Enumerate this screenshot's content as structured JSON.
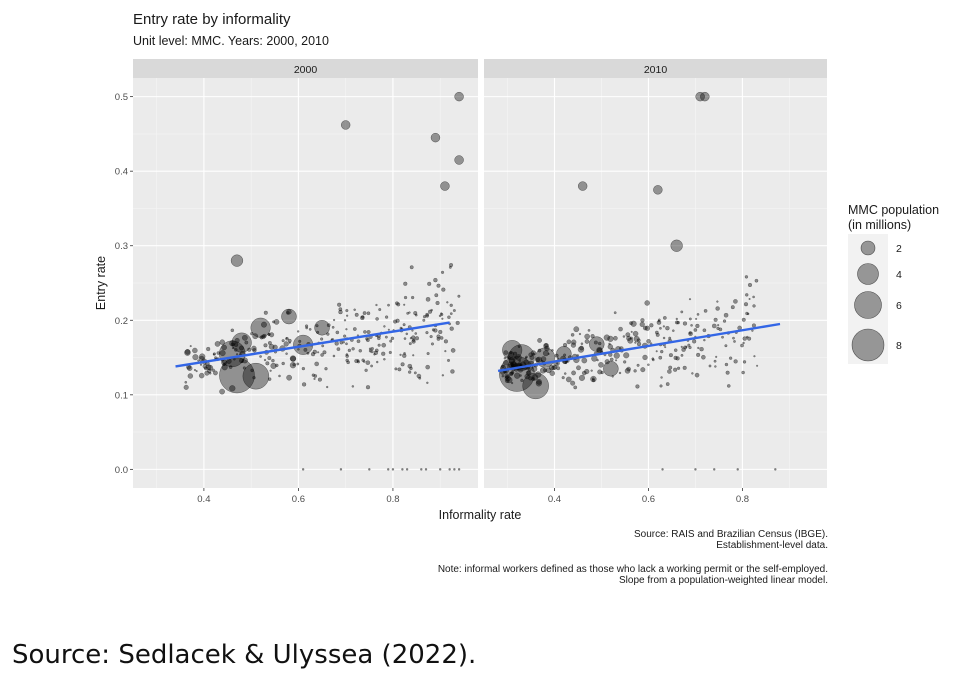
{
  "chart_data": {
    "type": "scatter",
    "title": "Entry rate by informality",
    "subtitle": "Unit level: MMC. Years: 2000, 2010",
    "xlabel": "Informality rate",
    "ylabel": "Entry rate",
    "xlim": [
      0.25,
      0.98
    ],
    "ylim": [
      -0.025,
      0.525
    ],
    "xticks": [
      "0.4",
      "0.6",
      "0.8"
    ],
    "yticks": [
      "0.0",
      "0.1",
      "0.2",
      "0.3",
      "0.4",
      "0.5"
    ],
    "grid": true,
    "facets": [
      "2000",
      "2010"
    ],
    "legend": {
      "title": "MMC population (in millions)",
      "position": "right",
      "sizes": [
        "2",
        "4",
        "6",
        "8"
      ]
    },
    "fit_lines": [
      {
        "facet": "2000",
        "x": [
          0.34,
          0.92
        ],
        "y": [
          0.138,
          0.197
        ],
        "color": "#3366e6"
      },
      {
        "facet": "2010",
        "x": [
          0.28,
          0.88
        ],
        "y": [
          0.132,
          0.195
        ],
        "color": "#3366e6"
      }
    ],
    "highlighted_points": [
      {
        "facet": "2000",
        "x": 0.47,
        "y": 0.126,
        "size": 8
      },
      {
        "facet": "2000",
        "x": 0.51,
        "y": 0.125,
        "size": 4
      },
      {
        "facet": "2000",
        "x": 0.46,
        "y": 0.155,
        "size": 4
      },
      {
        "facet": "2000",
        "x": 0.48,
        "y": 0.17,
        "size": 2
      },
      {
        "facet": "2000",
        "x": 0.52,
        "y": 0.19,
        "size": 2
      },
      {
        "facet": "2000",
        "x": 0.61,
        "y": 0.167,
        "size": 2
      },
      {
        "facet": "2000",
        "x": 0.58,
        "y": 0.205,
        "size": 1
      },
      {
        "facet": "2000",
        "x": 0.65,
        "y": 0.19,
        "size": 1
      },
      {
        "facet": "2000",
        "x": 0.47,
        "y": 0.28,
        "size": 0.5
      },
      {
        "facet": "2000",
        "x": 0.7,
        "y": 0.462,
        "size": 0.2
      },
      {
        "facet": "2000",
        "x": 0.94,
        "y": 0.5,
        "size": 0.2
      },
      {
        "facet": "2000",
        "x": 0.89,
        "y": 0.445,
        "size": 0.2
      },
      {
        "facet": "2000",
        "x": 0.94,
        "y": 0.415,
        "size": 0.2
      },
      {
        "facet": "2000",
        "x": 0.91,
        "y": 0.38,
        "size": 0.2
      },
      {
        "facet": "2010",
        "x": 0.32,
        "y": 0.128,
        "size": 8
      },
      {
        "facet": "2010",
        "x": 0.36,
        "y": 0.112,
        "size": 4
      },
      {
        "facet": "2010",
        "x": 0.33,
        "y": 0.15,
        "size": 4
      },
      {
        "facet": "2010",
        "x": 0.31,
        "y": 0.16,
        "size": 2
      },
      {
        "facet": "2010",
        "x": 0.38,
        "y": 0.15,
        "size": 2
      },
      {
        "facet": "2010",
        "x": 0.42,
        "y": 0.155,
        "size": 1
      },
      {
        "facet": "2010",
        "x": 0.49,
        "y": 0.168,
        "size": 1
      },
      {
        "facet": "2010",
        "x": 0.52,
        "y": 0.135,
        "size": 1
      },
      {
        "facet": "2010",
        "x": 0.46,
        "y": 0.38,
        "size": 0.2
      },
      {
        "facet": "2010",
        "x": 0.62,
        "y": 0.375,
        "size": 0.2
      },
      {
        "facet": "2010",
        "x": 0.71,
        "y": 0.5,
        "size": 0.2
      },
      {
        "facet": "2010",
        "x": 0.72,
        "y": 0.5,
        "size": 0.2
      },
      {
        "facet": "2010",
        "x": 0.66,
        "y": 0.3,
        "size": 0.5
      }
    ]
  },
  "captions": {
    "source": "Source: RAIS and Brazilian Census (IBGE).",
    "source2": "Establishment-level data.",
    "note1": "Note: informal workers defined as those who lack a working permit or the self-employed.",
    "note2": "Slope from a population-weighted linear model."
  },
  "footer": "Source: Sedlacek & Ulyssea (2022)."
}
